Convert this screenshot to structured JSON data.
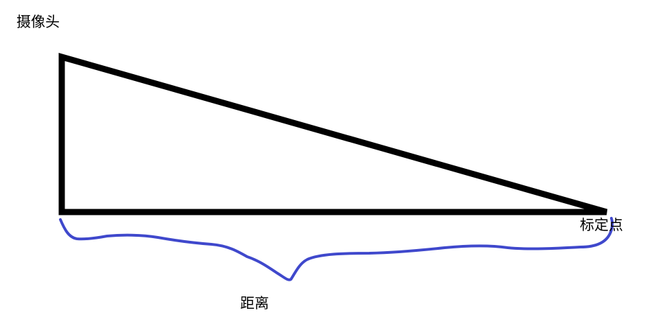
{
  "labels": {
    "camera": "摄像头",
    "calibration_point": "标定点",
    "distance": "距离"
  },
  "colors": {
    "background": "#ffffff",
    "triangle_stroke": "#000000",
    "distance_brace": "#3f48cc",
    "text": "#000000"
  }
}
